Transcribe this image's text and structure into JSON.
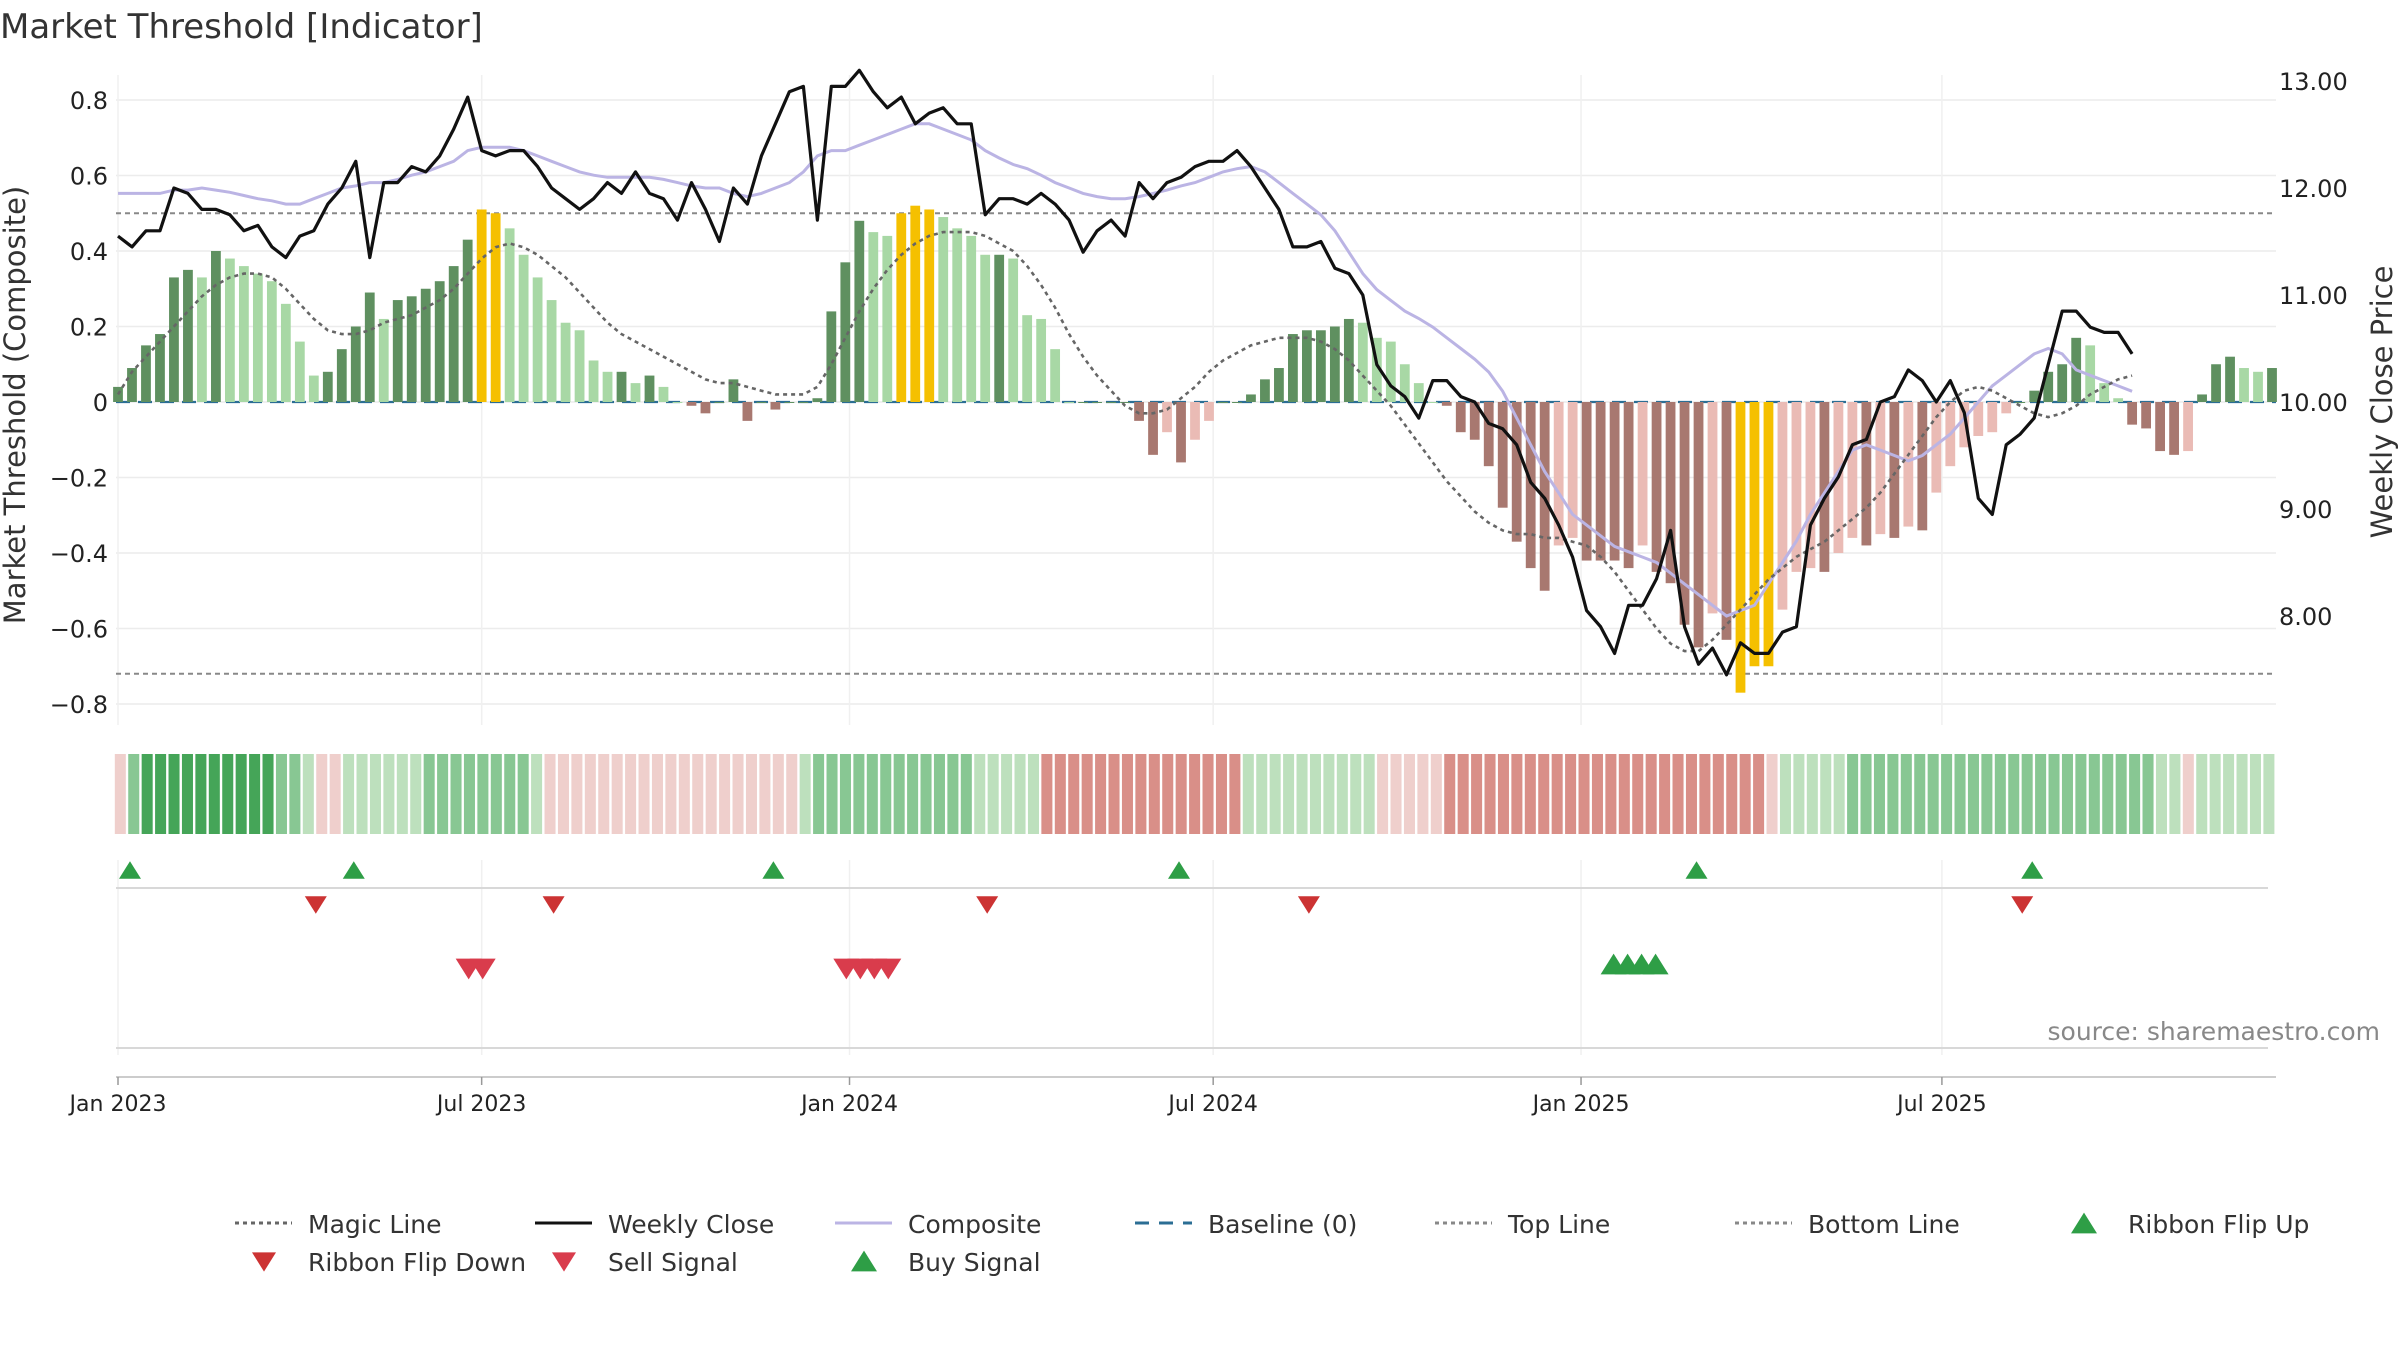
{
  "chart_data": {
    "type": "bar",
    "title": "Market Threshold [Indicator]",
    "ylabel_left": "Market Threshold (Composite)",
    "ylabel_right": "Weekly Close Price",
    "source_text": "source: sharemaestro.com",
    "ylim_left": [
      -0.85,
      0.85
    ],
    "ylim_right": [
      7.4,
      13.2
    ],
    "yticks_left": [
      {
        "v": 0.8,
        "label": "0.8"
      },
      {
        "v": 0.6,
        "label": "0.6"
      },
      {
        "v": 0.4,
        "label": "0.4"
      },
      {
        "v": 0.2,
        "label": "0.2"
      },
      {
        "v": 0,
        "label": "0"
      },
      {
        "v": -0.2,
        "label": "−0.2"
      },
      {
        "v": -0.4,
        "label": "−0.4"
      },
      {
        "v": -0.6,
        "label": "−0.6"
      },
      {
        "v": -0.8,
        "label": "−0.8"
      }
    ],
    "yticks_right": [
      {
        "v": 13,
        "label": "13.00"
      },
      {
        "v": 12,
        "label": "12.00"
      },
      {
        "v": 11,
        "label": "11.00"
      },
      {
        "v": 10,
        "label": "10.00"
      },
      {
        "v": 9,
        "label": "9.00"
      },
      {
        "v": 8,
        "label": "8.00"
      }
    ],
    "xticks": [
      {
        "week": 0,
        "label": "Jan 2023"
      },
      {
        "week": 26,
        "label": "Jul 2023"
      },
      {
        "week": 52.3,
        "label": "Jan 2024"
      },
      {
        "week": 78.3,
        "label": "Jul 2024"
      },
      {
        "week": 104.6,
        "label": "Jan 2025"
      },
      {
        "week": 130.4,
        "label": "Jul 2025"
      }
    ],
    "top_line": 0.5,
    "bottom_line": -0.72,
    "baseline": 0,
    "colors": {
      "pos_strong": "#5f9060",
      "pos_weak": "#a8d8a5",
      "neg_strong": "#a87870",
      "neg_weak": "#eabbb5",
      "extreme": "#f5c000",
      "magic": "#666666",
      "close": "#111111",
      "composite": "#bbb4e4",
      "baseline": "#2b6e94",
      "threshold": "#888888",
      "buy": "#2e9e46",
      "sell": "#d93c4c",
      "flip_down": "#cc3333"
    },
    "bars": [
      0.04,
      0.09,
      0.15,
      0.18,
      0.33,
      0.35,
      0.33,
      0.4,
      0.38,
      0.36,
      0.34,
      0.32,
      0.26,
      0.16,
      0.07,
      0.08,
      0.14,
      0.2,
      0.29,
      0.22,
      0.27,
      0.28,
      0.3,
      0.32,
      0.36,
      0.43,
      0.51,
      0.5,
      0.46,
      0.39,
      0.33,
      0.27,
      0.21,
      0.19,
      0.11,
      0.08,
      0.08,
      0.05,
      0.07,
      0.04,
      0.0,
      -0.01,
      -0.03,
      0.0,
      0.06,
      -0.05,
      0.0,
      -0.02,
      0.0,
      0.0,
      0.01,
      0.24,
      0.37,
      0.48,
      0.45,
      0.44,
      0.5,
      0.52,
      0.51,
      0.49,
      0.46,
      0.44,
      0.39,
      0.39,
      0.38,
      0.23,
      0.22,
      0.14,
      0.0,
      0.0,
      0.0,
      0.0,
      0.0,
      -0.05,
      -0.14,
      -0.08,
      -0.16,
      -0.1,
      -0.05,
      0.0,
      0.0,
      0.02,
      0.06,
      0.09,
      0.18,
      0.19,
      0.19,
      0.2,
      0.22,
      0.21,
      0.17,
      0.16,
      0.1,
      0.05,
      0.0,
      -0.01,
      -0.08,
      -0.1,
      -0.17,
      -0.28,
      -0.37,
      -0.44,
      -0.5,
      -0.38,
      -0.36,
      -0.42,
      -0.42,
      -0.42,
      -0.44,
      -0.38,
      -0.45,
      -0.48,
      -0.59,
      -0.65,
      -0.56,
      -0.63,
      -0.77,
      -0.7,
      -0.7,
      -0.55,
      -0.45,
      -0.44,
      -0.45,
      -0.4,
      -0.36,
      -0.38,
      -0.35,
      -0.36,
      -0.33,
      -0.34,
      -0.24,
      -0.17,
      -0.12,
      -0.09,
      -0.08,
      -0.03,
      0.0,
      0.03,
      0.08,
      0.1,
      0.17,
      0.15,
      0.05,
      0.01,
      -0.06,
      -0.07,
      -0.13,
      -0.14,
      -0.13,
      0.02,
      0.1,
      0.12,
      0.09,
      0.08,
      0.09
    ],
    "weekly_close": [
      11.55,
      11.45,
      11.6,
      11.6,
      12.0,
      11.95,
      11.8,
      11.8,
      11.75,
      11.6,
      11.65,
      11.45,
      11.35,
      11.55,
      11.6,
      11.85,
      12.0,
      12.25,
      11.35,
      12.05,
      12.05,
      12.2,
      12.15,
      12.3,
      12.55,
      12.85,
      12.35,
      12.3,
      12.35,
      12.35,
      12.2,
      12.0,
      11.9,
      11.8,
      11.9,
      12.05,
      11.95,
      12.15,
      11.95,
      11.9,
      11.7,
      12.05,
      11.8,
      11.5,
      12.0,
      11.85,
      12.3,
      12.6,
      12.9,
      12.95,
      11.7,
      12.95,
      12.95,
      13.1,
      12.9,
      12.75,
      12.85,
      12.6,
      12.7,
      12.75,
      12.6,
      12.6,
      11.75,
      11.9,
      11.9,
      11.85,
      11.95,
      11.85,
      11.7,
      11.4,
      11.6,
      11.7,
      11.55,
      12.05,
      11.9,
      12.05,
      12.1,
      12.2,
      12.25,
      12.25,
      12.35,
      12.2,
      12.0,
      11.8,
      11.45,
      11.45,
      11.5,
      11.25,
      11.2,
      11.0,
      10.35,
      10.15,
      10.05,
      9.85,
      10.2,
      10.2,
      10.05,
      10.0,
      9.8,
      9.75,
      9.6,
      9.25,
      9.1,
      8.85,
      8.55,
      8.05,
      7.9,
      7.65,
      8.1,
      8.1,
      8.35,
      8.8,
      7.9,
      7.55,
      7.7,
      7.45,
      7.75,
      7.65,
      7.65,
      7.85,
      7.9,
      8.85,
      9.1,
      9.3,
      9.6,
      9.65,
      10.0,
      10.05,
      10.3,
      10.2,
      10.0,
      10.2,
      9.9,
      9.1,
      8.95,
      9.6,
      9.7,
      9.85,
      10.35,
      10.85,
      10.85,
      10.7,
      10.65,
      10.65,
      10.45
    ],
    "composite_line": [
      11.95,
      11.95,
      11.95,
      11.95,
      11.98,
      11.98,
      12.0,
      11.98,
      11.96,
      11.93,
      11.9,
      11.88,
      11.85,
      11.85,
      11.9,
      11.95,
      12.0,
      12.02,
      12.05,
      12.05,
      12.08,
      12.12,
      12.15,
      12.2,
      12.25,
      12.35,
      12.38,
      12.38,
      12.38,
      12.35,
      12.3,
      12.25,
      12.2,
      12.15,
      12.12,
      12.1,
      12.1,
      12.1,
      12.1,
      12.08,
      12.05,
      12.02,
      12.0,
      12.0,
      11.95,
      11.92,
      11.95,
      12.0,
      12.05,
      12.15,
      12.3,
      12.35,
      12.35,
      12.4,
      12.45,
      12.5,
      12.55,
      12.6,
      12.6,
      12.55,
      12.5,
      12.45,
      12.35,
      12.28,
      12.22,
      12.18,
      12.12,
      12.05,
      12.0,
      11.95,
      11.92,
      11.9,
      11.9,
      11.92,
      11.95,
      11.98,
      12.02,
      12.05,
      12.1,
      12.15,
      12.18,
      12.2,
      12.15,
      12.05,
      11.95,
      11.85,
      11.75,
      11.6,
      11.4,
      11.2,
      11.05,
      10.95,
      10.85,
      10.78,
      10.7,
      10.6,
      10.5,
      10.4,
      10.28,
      10.1,
      9.85,
      9.6,
      9.35,
      9.15,
      8.95,
      8.85,
      8.75,
      8.65,
      8.6,
      8.55,
      8.5,
      8.4,
      8.3,
      8.2,
      8.1,
      8.0,
      8.05,
      8.1,
      8.3,
      8.5,
      8.7,
      8.95,
      9.15,
      9.35,
      9.55,
      9.6,
      9.55,
      9.5,
      9.45,
      9.5,
      9.6,
      9.7,
      9.85,
      10.0,
      10.15,
      10.25,
      10.35,
      10.45,
      10.5,
      10.45,
      10.3,
      10.25,
      10.2,
      10.15,
      10.1
    ],
    "magic_line": [
      0.02,
      0.08,
      0.12,
      0.16,
      0.2,
      0.24,
      0.28,
      0.31,
      0.33,
      0.34,
      0.34,
      0.33,
      0.3,
      0.26,
      0.22,
      0.19,
      0.18,
      0.18,
      0.19,
      0.21,
      0.22,
      0.23,
      0.25,
      0.27,
      0.3,
      0.34,
      0.38,
      0.41,
      0.42,
      0.41,
      0.39,
      0.36,
      0.33,
      0.29,
      0.25,
      0.21,
      0.18,
      0.16,
      0.14,
      0.12,
      0.1,
      0.08,
      0.06,
      0.05,
      0.05,
      0.04,
      0.03,
      0.02,
      0.02,
      0.02,
      0.04,
      0.1,
      0.17,
      0.24,
      0.3,
      0.35,
      0.39,
      0.42,
      0.44,
      0.45,
      0.45,
      0.45,
      0.44,
      0.42,
      0.4,
      0.36,
      0.31,
      0.25,
      0.18,
      0.12,
      0.07,
      0.03,
      -0.01,
      -0.03,
      -0.03,
      -0.02,
      0.01,
      0.04,
      0.08,
      0.11,
      0.13,
      0.15,
      0.16,
      0.17,
      0.17,
      0.17,
      0.16,
      0.14,
      0.11,
      0.07,
      0.03,
      -0.01,
      -0.06,
      -0.11,
      -0.16,
      -0.21,
      -0.25,
      -0.29,
      -0.32,
      -0.34,
      -0.35,
      -0.35,
      -0.36,
      -0.36,
      -0.37,
      -0.38,
      -0.41,
      -0.45,
      -0.5,
      -0.55,
      -0.6,
      -0.64,
      -0.66,
      -0.66,
      -0.63,
      -0.59,
      -0.55,
      -0.51,
      -0.47,
      -0.44,
      -0.41,
      -0.39,
      -0.37,
      -0.34,
      -0.31,
      -0.28,
      -0.24,
      -0.19,
      -0.14,
      -0.09,
      -0.04,
      0.0,
      0.03,
      0.04,
      0.03,
      0.01,
      -0.01,
      -0.03,
      -0.04,
      -0.03,
      -0.01,
      0.02,
      0.04,
      0.06,
      0.07
    ],
    "ribbon": [
      -1,
      2,
      3,
      3,
      3,
      3,
      3,
      3,
      3,
      3,
      3,
      3,
      2,
      2,
      1,
      -1,
      -1,
      1,
      1,
      1,
      1,
      1,
      1,
      2,
      2,
      2,
      2,
      2,
      2,
      2,
      2,
      1,
      -1,
      -1,
      -1,
      -1,
      -1,
      -1,
      -1,
      -1,
      -1,
      -1,
      -1,
      -1,
      -1,
      -1,
      -1,
      -1,
      -1,
      -1,
      -1,
      1,
      2,
      2,
      2,
      2,
      2,
      2,
      2,
      2,
      2,
      2,
      2,
      2,
      1,
      1,
      1,
      1,
      1,
      -2,
      -2,
      -2,
      -2,
      -2,
      -2,
      -2,
      -2,
      -2,
      -2,
      -2,
      -2,
      -2,
      -2,
      -2,
      1,
      1,
      1,
      1,
      1,
      1,
      1,
      1,
      1,
      1,
      -1,
      -1,
      -1,
      -1,
      -1,
      -2,
      -2,
      -2,
      -2,
      -2,
      -2,
      -2,
      -2,
      -2,
      -2,
      -2,
      -2,
      -2,
      -2,
      -2,
      -2,
      -2,
      -2,
      -2,
      -2,
      -2,
      -2,
      -2,
      -2,
      -1,
      1,
      1,
      1,
      1,
      1,
      2,
      2,
      2,
      2,
      2,
      2,
      2,
      2,
      2,
      2,
      2,
      2,
      2,
      2,
      2,
      2,
      2,
      2,
      2,
      2,
      2,
      2,
      2,
      1,
      1,
      -1,
      1,
      1,
      1,
      1,
      1,
      1
    ],
    "ribbon_flip_up": [
      1,
      17,
      47,
      76,
      113,
      137
    ],
    "ribbon_flip_down": [
      14,
      31,
      62,
      85,
      136
    ],
    "sell_signal": [
      25,
      26,
      52,
      53,
      54,
      55
    ],
    "buy_signal": [
      107,
      108,
      109,
      110
    ]
  },
  "legend": [
    {
      "label": "Magic Line",
      "kind": "dotted",
      "color": "#666666"
    },
    {
      "label": "Weekly Close",
      "kind": "solid",
      "color": "#111111"
    },
    {
      "label": "Composite",
      "kind": "solid",
      "color": "#bbb4e4"
    },
    {
      "label": "Baseline (0)",
      "kind": "dashed",
      "color": "#2b6e94"
    },
    {
      "label": "Top Line",
      "kind": "dotted",
      "color": "#888888"
    },
    {
      "label": "Bottom Line",
      "kind": "dotted",
      "color": "#888888"
    },
    {
      "label": "Ribbon Flip Up",
      "kind": "tri-up",
      "color": "#2e9e46"
    },
    {
      "label": "Ribbon Flip Down",
      "kind": "tri-down",
      "color": "#cc3333"
    },
    {
      "label": "Sell Signal",
      "kind": "tri-down",
      "color": "#d93c4c"
    },
    {
      "label": "Buy Signal",
      "kind": "tri-up",
      "color": "#2e9e46"
    }
  ]
}
